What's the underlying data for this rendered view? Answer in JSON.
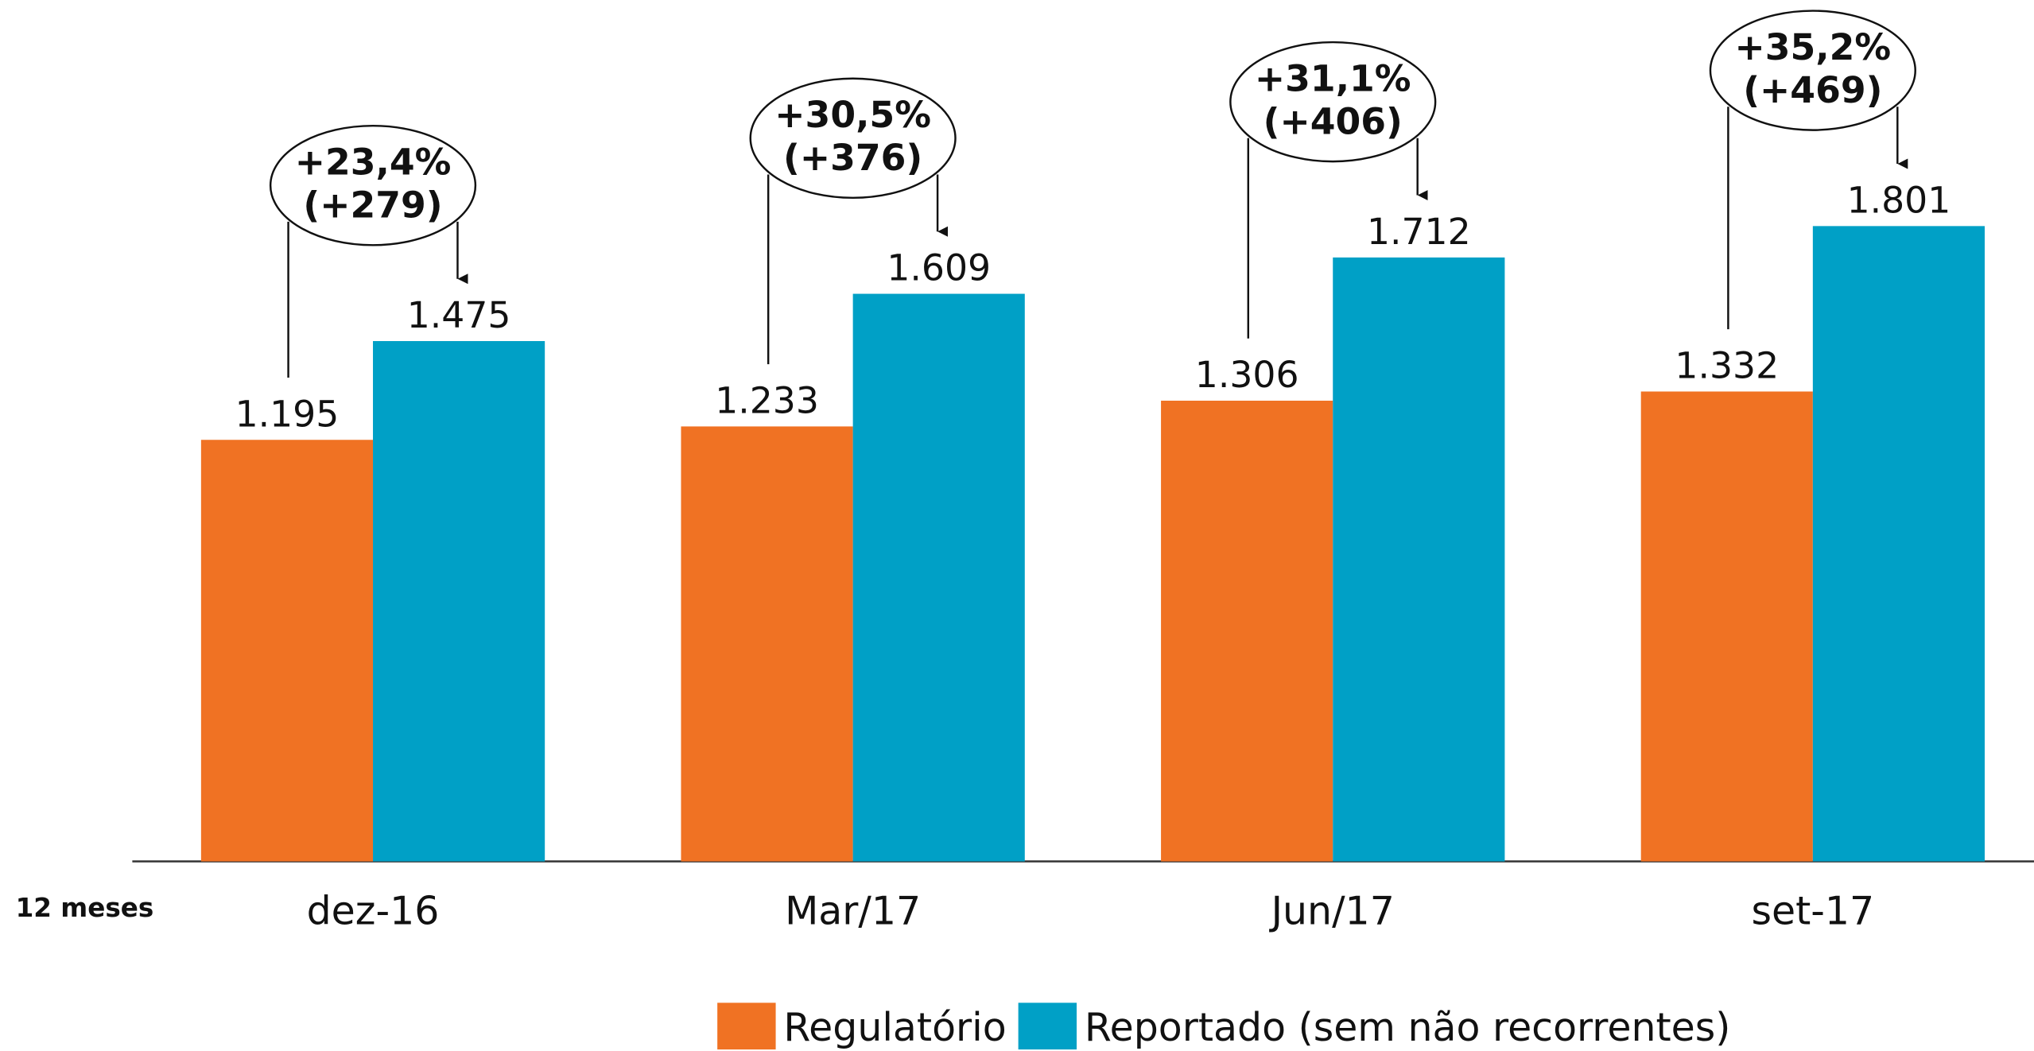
{
  "chart_data": {
    "type": "bar",
    "row_label": "12 meses",
    "categories": [
      "dez-16",
      "Mar/17",
      "Jun/17",
      "set-17"
    ],
    "series": [
      {
        "name": "Regulatório",
        "color": "#f07223",
        "values": [
          1195,
          1233,
          1306,
          1332
        ],
        "value_labels": [
          "1.195",
          "1.233",
          "1.306",
          "1.332"
        ]
      },
      {
        "name": "Reportado (sem não recorrentes)",
        "color": "#00a0c6",
        "values": [
          1475,
          1609,
          1712,
          1801
        ],
        "value_labels": [
          "1.475",
          "1.609",
          "1.712",
          "1.801"
        ]
      }
    ],
    "annotations": [
      {
        "lines": [
          "+23,4%",
          "(+279)"
        ]
      },
      {
        "lines": [
          "+30,5%",
          "(+376)"
        ]
      },
      {
        "lines": [
          "+31,1%",
          "(+406)"
        ]
      },
      {
        "lines": [
          "+35,2%",
          "(+469)"
        ]
      }
    ]
  }
}
